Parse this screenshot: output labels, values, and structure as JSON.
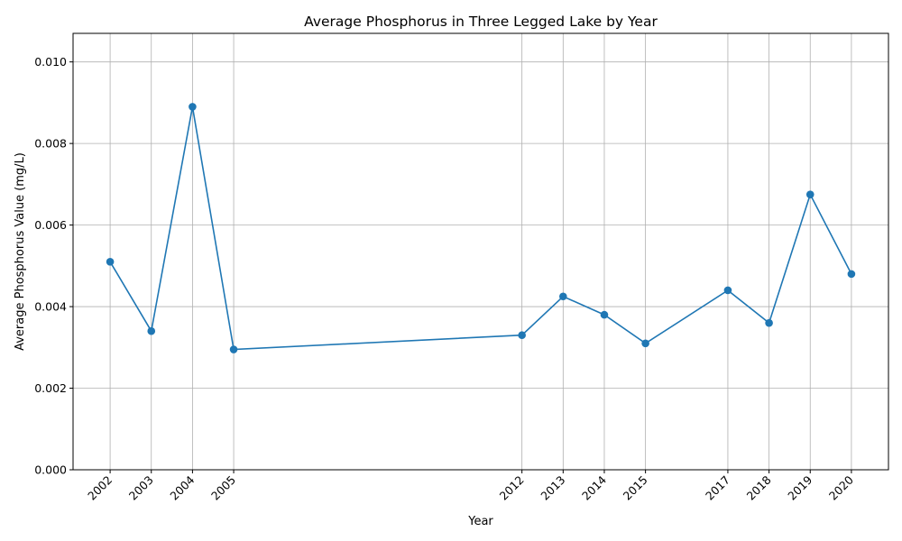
{
  "chart_data": {
    "type": "line",
    "title": "Average Phosphorus in Three Legged Lake by Year",
    "xlabel": "Year",
    "ylabel": "Average Phosphorus Value (mg/L)",
    "x": [
      2002,
      2003,
      2004,
      2005,
      2012,
      2013,
      2014,
      2015,
      2017,
      2018,
      2019,
      2020
    ],
    "series": [
      {
        "values": [
          0.0051,
          0.0034,
          0.0089,
          0.00295,
          0.0033,
          0.00425,
          0.0038,
          0.0031,
          0.0044,
          0.0036,
          0.00675,
          0.0048
        ],
        "color": "#1f77b4",
        "marker": "circle"
      }
    ],
    "xticks": [
      "2002",
      "2003",
      "2004",
      "2005",
      "2012",
      "2013",
      "2014",
      "2015",
      "2017",
      "2018",
      "2019",
      "2020"
    ],
    "yticks": [
      "0.000",
      "0.002",
      "0.004",
      "0.006",
      "0.008",
      "0.010"
    ],
    "xlim": [
      2001.1,
      2020.9
    ],
    "ylim": [
      0,
      0.0107
    ],
    "grid": true,
    "legend": "none"
  }
}
